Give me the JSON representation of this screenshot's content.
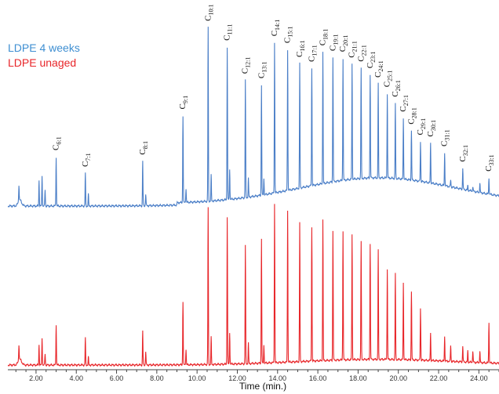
{
  "chart_data": {
    "type": "line",
    "title": "",
    "xlabel": "Time (min.)",
    "ylabel": "",
    "xlim": [
      0.6,
      25.0
    ],
    "x_ticks": [
      {
        "value": 2,
        "label": "2.00"
      },
      {
        "value": 4,
        "label": "4.00"
      },
      {
        "value": 6,
        "label": "6.00"
      },
      {
        "value": 8,
        "label": "8.00"
      },
      {
        "value": 10,
        "label": "10.00"
      },
      {
        "value": 12,
        "label": "12.00"
      },
      {
        "value": 14,
        "label": "14.00"
      },
      {
        "value": 16,
        "label": "16.00"
      },
      {
        "value": 18,
        "label": "18.00"
      },
      {
        "value": 20,
        "label": "20.00"
      },
      {
        "value": 22,
        "label": "22.00"
      },
      {
        "value": 24,
        "label": "24.00"
      }
    ],
    "legend_position": "top-left",
    "series": [
      {
        "name": "LDPE 4 weeks",
        "color": "#4a7ec7"
      },
      {
        "name": "LDPE unaged",
        "color": "#e8262a"
      }
    ],
    "peaks": [
      {
        "rt": 1.15,
        "blue": 0.14,
        "red": 0.14
      },
      {
        "rt": 2.15,
        "blue": 0.22,
        "red": 0.18
      },
      {
        "rt": 2.3,
        "blue": 0.26,
        "red": 0.24
      },
      {
        "rt": 2.45,
        "blue": 0.14,
        "red": 0.1
      },
      {
        "rt": 3.0,
        "blue": 0.42,
        "red": 0.36,
        "label": "C6:1"
      },
      {
        "rt": 4.45,
        "blue": 0.28,
        "red": 0.24,
        "label": "C7:1"
      },
      {
        "rt": 4.6,
        "blue": 0.1,
        "red": 0.07
      },
      {
        "rt": 7.3,
        "blue": 0.38,
        "red": 0.3,
        "label": "C8:1"
      },
      {
        "rt": 7.45,
        "blue": 0.1,
        "red": 0.12
      },
      {
        "rt": 9.3,
        "blue": 0.74,
        "red": 0.56,
        "label": "C9:1"
      },
      {
        "rt": 9.45,
        "blue": 0.12,
        "red": 0.14
      },
      {
        "rt": 10.55,
        "blue": 1.48,
        "red": 1.38,
        "label": "C10:1"
      },
      {
        "rt": 10.7,
        "blue": 0.22,
        "red": 0.24
      },
      {
        "rt": 11.5,
        "blue": 1.3,
        "red": 1.3,
        "label": "C11:1"
      },
      {
        "rt": 11.62,
        "blue": 0.26,
        "red": 0.28
      },
      {
        "rt": 12.4,
        "blue": 1.0,
        "red": 1.04,
        "label": "C12:1"
      },
      {
        "rt": 12.55,
        "blue": 0.16,
        "red": 0.18
      },
      {
        "rt": 13.2,
        "blue": 0.94,
        "red": 1.1,
        "label": "C13:1"
      },
      {
        "rt": 13.32,
        "blue": 0.14,
        "red": 0.16
      },
      {
        "rt": 13.85,
        "blue": 1.28,
        "red": 1.4,
        "label": "C14:1"
      },
      {
        "rt": 14.5,
        "blue": 1.2,
        "red": 1.34,
        "label": "C15:1"
      },
      {
        "rt": 15.1,
        "blue": 1.06,
        "red": 1.22,
        "label": "C16:1"
      },
      {
        "rt": 15.7,
        "blue": 1.0,
        "red": 1.18,
        "label": "C17:1"
      },
      {
        "rt": 16.25,
        "blue": 1.12,
        "red": 1.24,
        "label": "C18:1"
      },
      {
        "rt": 16.75,
        "blue": 1.06,
        "red": 1.14,
        "label": "C19:1"
      },
      {
        "rt": 17.25,
        "blue": 1.04,
        "red": 1.14,
        "label": "C20:1"
      },
      {
        "rt": 17.7,
        "blue": 0.98,
        "red": 1.1,
        "label": "C21:1"
      },
      {
        "rt": 18.15,
        "blue": 0.94,
        "red": 1.04,
        "label": "C22:1"
      },
      {
        "rt": 18.6,
        "blue": 0.88,
        "red": 1.02,
        "label": "C23:1"
      },
      {
        "rt": 19.0,
        "blue": 0.8,
        "red": 0.96,
        "label": "C24:1"
      },
      {
        "rt": 19.45,
        "blue": 0.72,
        "red": 0.8,
        "label": "C25:1"
      },
      {
        "rt": 19.85,
        "blue": 0.64,
        "red": 0.76,
        "label": "C26:1"
      },
      {
        "rt": 20.25,
        "blue": 0.52,
        "red": 0.68,
        "label": "C27:1"
      },
      {
        "rt": 20.65,
        "blue": 0.42,
        "red": 0.6,
        "label": "C28:1"
      },
      {
        "rt": 21.1,
        "blue": 0.34,
        "red": 0.46,
        "label": "C29:1"
      },
      {
        "rt": 21.6,
        "blue": 0.34,
        "red": 0.24,
        "label": "C30:1"
      },
      {
        "rt": 22.3,
        "blue": 0.28,
        "red": 0.22,
        "label": "C31:1"
      },
      {
        "rt": 22.6,
        "blue": 0.06,
        "red": 0.14
      },
      {
        "rt": 23.2,
        "blue": 0.18,
        "red": 0.14,
        "label": "C32:1"
      },
      {
        "rt": 23.45,
        "blue": 0.04,
        "red": 0.1
      },
      {
        "rt": 23.7,
        "blue": 0.04,
        "red": 0.1
      },
      {
        "rt": 24.05,
        "blue": 0.08,
        "red": 0.1
      },
      {
        "rt": 24.5,
        "blue": 0.14,
        "red": 0.36,
        "label": "C33:1"
      }
    ]
  }
}
